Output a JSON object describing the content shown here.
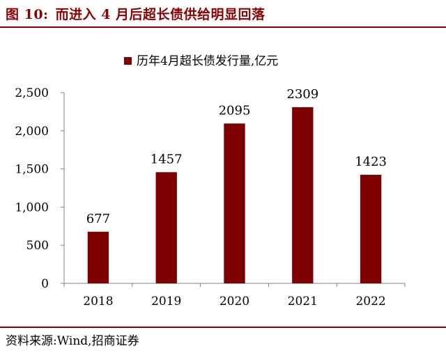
{
  "figure": {
    "label": "图 10:",
    "title": "而进入 4 月后超长债供给明显回落",
    "source": "资料来源:Wind,招商证券"
  },
  "colors": {
    "accent": "#8B0000",
    "bar": "#7F0000",
    "axis": "#808080"
  },
  "chart_data": {
    "type": "bar",
    "categories": [
      "2018",
      "2019",
      "2020",
      "2021",
      "2022"
    ],
    "series": [
      {
        "name": "历年4月超长债发行量,亿元",
        "values": [
          677,
          1457,
          2095,
          2309,
          1423
        ]
      }
    ],
    "data_labels": [
      "677",
      "1457",
      "2095",
      "2309",
      "1423"
    ],
    "y_ticks": [
      0,
      500,
      1000,
      1500,
      2000,
      2500
    ],
    "y_tick_labels": [
      "0",
      "500",
      "1,000",
      "1,500",
      "2,000",
      "2,500"
    ],
    "ylim": [
      0,
      2500
    ],
    "title": "",
    "xlabel": "",
    "ylabel": "",
    "grid": false,
    "legend_position": "top-center"
  }
}
